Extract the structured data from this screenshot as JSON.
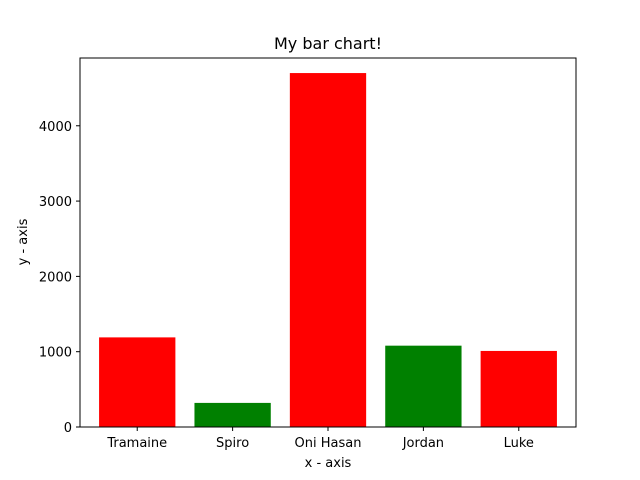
{
  "chart_data": {
    "type": "bar",
    "title": "My bar chart!",
    "xlabel": "x - axis",
    "ylabel": "y - axis",
    "categories": [
      "Tramaine",
      "Spiro",
      "Oni Hasan",
      "Jordan",
      "Luke"
    ],
    "values": [
      1190,
      320,
      4700,
      1080,
      1010
    ],
    "colors": [
      "#ff0000",
      "#008000",
      "#ff0000",
      "#008000",
      "#ff0000"
    ],
    "ylim": [
      0,
      4900
    ],
    "yticks": [
      0,
      1000,
      2000,
      3000,
      4000
    ],
    "ytick_labels": [
      "0",
      "1000",
      "2000",
      "3000",
      "4000"
    ],
    "grid": false,
    "legend": "none"
  }
}
